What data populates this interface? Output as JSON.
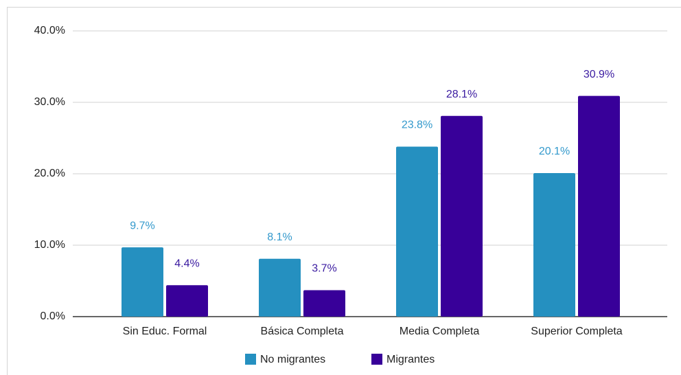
{
  "chart_data": {
    "type": "bar",
    "categories": [
      "Sin Educ. Formal",
      "Básica Completa",
      "Media Completa",
      "Superior Completa"
    ],
    "series": [
      {
        "name": "No migrantes",
        "color": "#2590c0",
        "values": [
          9.7,
          8.1,
          23.8,
          20.1
        ],
        "value_labels": [
          "9.7%",
          "8.1%",
          "23.8%",
          "20.1%"
        ]
      },
      {
        "name": "Migrantes",
        "color": "#380099",
        "values": [
          4.4,
          3.7,
          28.1,
          30.9
        ],
        "value_labels": [
          "4.4%",
          "3.7%",
          "28.1%",
          "30.9%"
        ]
      }
    ],
    "ylim": [
      0,
      40
    ],
    "yticks": [
      {
        "value": 0,
        "label": "0.0%"
      },
      {
        "value": 10,
        "label": "10.0%"
      },
      {
        "value": 20,
        "label": "20.0%"
      },
      {
        "value": 30,
        "label": "30.0%"
      },
      {
        "value": 40,
        "label": "40.0%"
      }
    ],
    "grid": true,
    "legend": "bottom"
  }
}
